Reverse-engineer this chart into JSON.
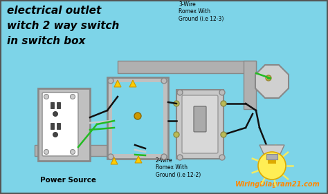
{
  "bg_color": "#7dd4e8",
  "title_lines": [
    "electrical outlet",
    "witch 2 way switch",
    "in switch box"
  ],
  "title_color": "#000000",
  "title_fontsize": 11,
  "label_3wire": "3-Wire\nRomex With\nGround (i.e 12-3)",
  "label_2wire": "2-Wire\nRomex With\nGround (i.e 12-2)",
  "label_power": "Power Source",
  "label_brand": "WiringDiagram21.com",
  "brand_color": "#ff8800",
  "wire_black": "#111111",
  "wire_white": "#cccccc",
  "wire_green": "#22bb22",
  "wire_gray": "#aaaaaa",
  "conduit_color": "#b0b0b0",
  "box_color": "#b0b0b0",
  "outlet_color": "#ffffff",
  "bulb_color": "#ffee55",
  "switch_color": "#cccccc",
  "yellow_nut": "#ffcc00",
  "screw_color": "#888844"
}
